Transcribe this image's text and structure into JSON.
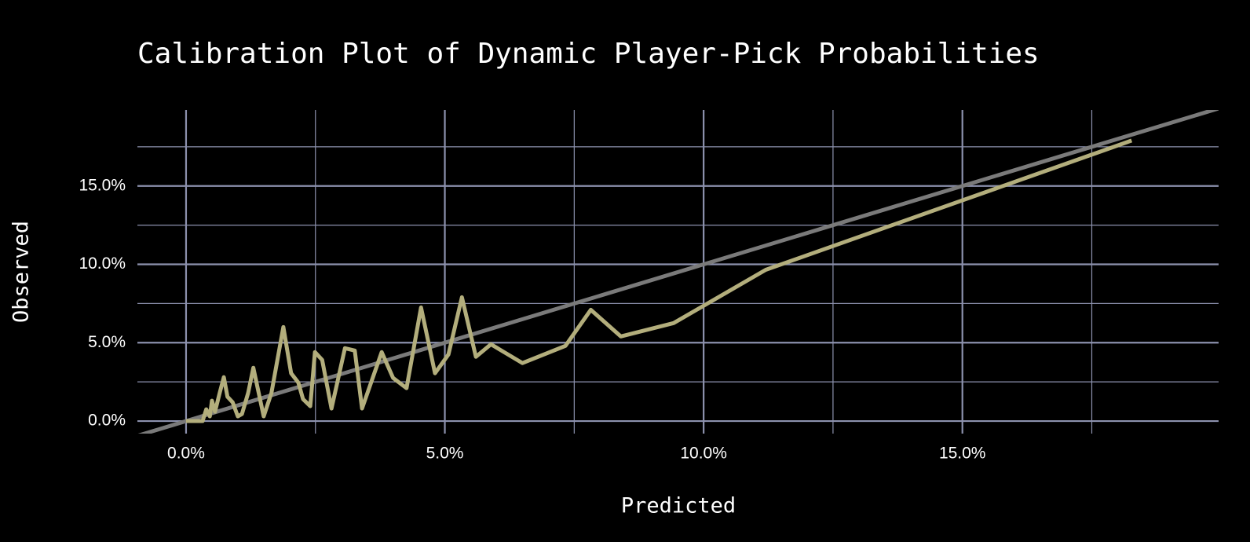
{
  "chart_data": {
    "type": "line",
    "title": "Calibration Plot of Dynamic Player-Pick Probabilities",
    "x_label": "Predicted",
    "y_label": "Observed",
    "x": [
      0,
      0.32,
      0.39,
      0.46,
      0.5,
      0.56,
      0.65,
      0.73,
      0.8,
      0.9,
      1.0,
      1.08,
      1.2,
      1.3,
      1.5,
      1.65,
      1.88,
      2.03,
      2.17,
      2.26,
      2.4,
      2.49,
      2.63,
      2.81,
      3.07,
      3.26,
      3.4,
      3.78,
      4.0,
      4.26,
      4.54,
      4.81,
      5.07,
      5.33,
      5.6,
      5.89,
      6.5,
      7.33,
      7.82,
      8.4,
      9.42,
      11.2,
      18.27
    ],
    "values": [
      0,
      0,
      0.75,
      0.3,
      1.3,
      0.6,
      1.8,
      2.8,
      1.55,
      1.2,
      0.3,
      0.45,
      1.8,
      3.4,
      0.3,
      1.8,
      6.0,
      3.05,
      2.45,
      1.4,
      0.95,
      4.4,
      3.9,
      0.8,
      4.65,
      4.5,
      0.8,
      4.4,
      2.75,
      2.1,
      7.25,
      3.05,
      4.25,
      7.9,
      4.1,
      4.9,
      3.7,
      4.8,
      7.1,
      5.4,
      6.25,
      9.65,
      17.9
    ],
    "color": "#b3ae7c",
    "diagonal": true,
    "diagonal_color": "#7a7a7a",
    "xlim": [
      -0.94,
      19.95
    ],
    "ylim": [
      -0.8,
      19.85
    ],
    "xticks": [
      {
        "value": 0,
        "label": "0.0%"
      },
      {
        "value": 5,
        "label": "5.0%"
      },
      {
        "value": 10,
        "label": "10.0%"
      },
      {
        "value": 15,
        "label": "15.0%"
      }
    ],
    "yticks": [
      {
        "value": 0,
        "label": "0.0%"
      },
      {
        "value": 5,
        "label": "5.0%"
      },
      {
        "value": 10,
        "label": "10.0%"
      },
      {
        "value": 15,
        "label": "15.0%"
      }
    ],
    "x_minor_ticks": [
      2.5,
      7.5,
      12.5,
      17.5
    ],
    "y_minor_ticks": [
      2.5,
      7.5,
      12.5,
      17.5
    ],
    "grid": true,
    "grid_color": "#8c91ad"
  }
}
